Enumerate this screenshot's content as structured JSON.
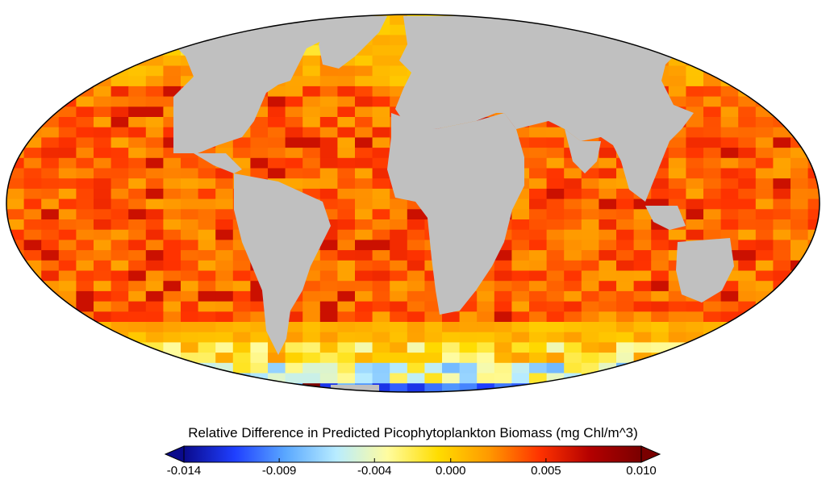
{
  "colorbar": {
    "title": "Relative Difference in Predicted Picophytoplankton Biomass (mg Chl/m^3)",
    "min": -0.014,
    "max": 0.01,
    "ticks": [
      {
        "value": -0.014,
        "label": "-0.014"
      },
      {
        "value": -0.009,
        "label": "-0.009"
      },
      {
        "value": -0.004,
        "label": "-0.004"
      },
      {
        "value": 0.0,
        "label": "0.000"
      },
      {
        "value": 0.005,
        "label": "0.005"
      },
      {
        "value": 0.01,
        "label": "0.010"
      }
    ],
    "extend": "both",
    "colormap": [
      "#0a0a8c",
      "#1f3fff",
      "#5aa8ff",
      "#b8ecff",
      "#fffca0",
      "#ffdd00",
      "#ff9900",
      "#ff3300",
      "#b30000",
      "#7a0000"
    ]
  },
  "map": {
    "projection": "robinson",
    "land_color": "#c0c0c0",
    "outline_color": "#000000"
  }
}
